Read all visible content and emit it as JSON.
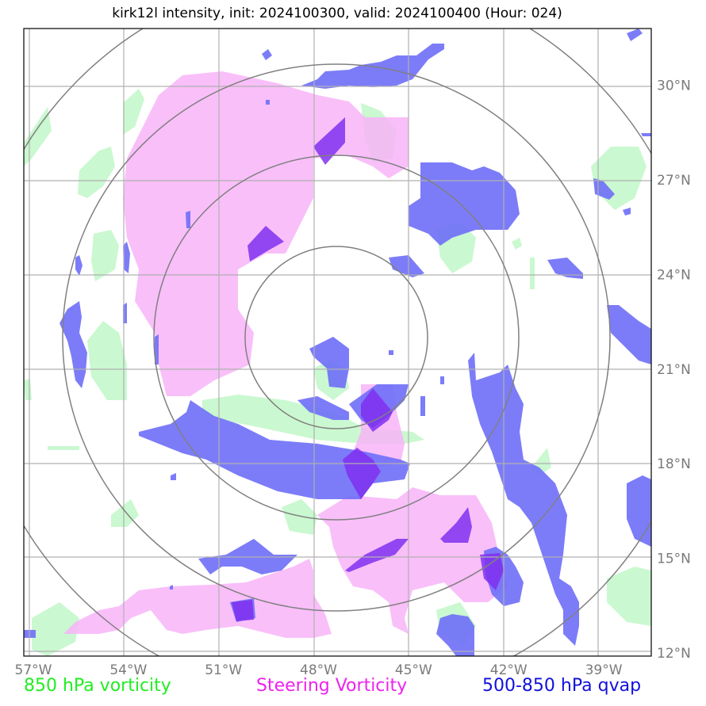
{
  "title": "kirk12l intensity, init: 2024100300, valid: 2024100400 (Hour: 024)",
  "chart_data": {
    "type": "contour-map",
    "title": "kirk12l intensity, init: 2024100300, valid: 2024100400 (Hour: 024)",
    "x_ticks": [
      "57°W",
      "54°W",
      "51°W",
      "48°W",
      "45°W",
      "42°W",
      "39°W"
    ],
    "x_values": [
      -57,
      -54,
      -51,
      -48,
      -45,
      -42,
      -39
    ],
    "y_ticks": [
      "30°N",
      "27°N",
      "24°N",
      "21°N",
      "18°N",
      "15°N",
      "12°N"
    ],
    "y_values": [
      30,
      27,
      24,
      21,
      18,
      15,
      12
    ],
    "lon_range": [
      -57.3,
      -37.5
    ],
    "lat_range": [
      11.9,
      31.8
    ],
    "grid": true,
    "range_rings": {
      "center_lon": -47.3,
      "center_lat": 21.2,
      "count": 4
    },
    "colors": {
      "vorticity_850": "#b8f5c0",
      "steering_vorticity": "#f8b4f8",
      "qvap_500_850": "#6e6ef8",
      "overlap": "#8030f0"
    },
    "legend": [
      {
        "label": "850 hPa vorticity",
        "color": "#22ee22"
      },
      {
        "label": "Steering Vorticity",
        "color": "#ee22ee"
      },
      {
        "label": "500-850 hPa qvap",
        "color": "#1111dd"
      }
    ]
  }
}
